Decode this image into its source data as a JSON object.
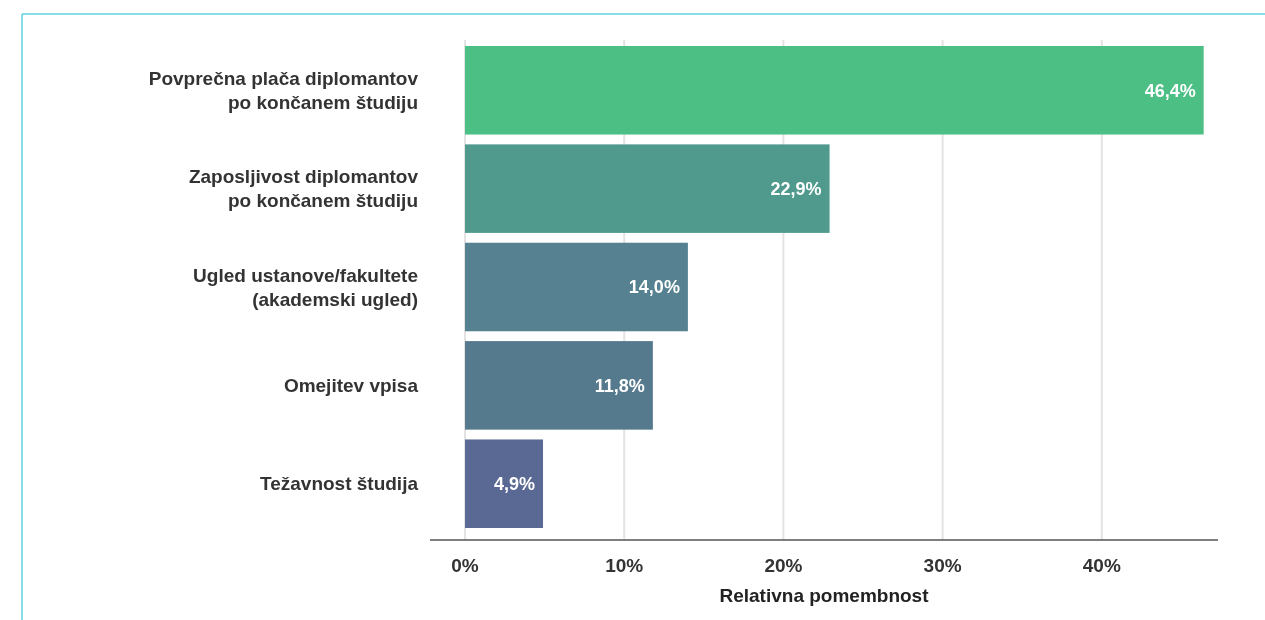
{
  "chart_data": {
    "type": "bar",
    "orientation": "horizontal",
    "xlabel": "Relativna pomembnost",
    "categories": [
      "Povprečna plača diplomantov\npo končanem študiju",
      "Zaposljivost diplomantov\npo končanem študiju",
      "Ugled ustanove/fakultete\n(akademski ugled)",
      "Omejitev vpisa",
      "Težavnost študija"
    ],
    "values": [
      46.4,
      22.9,
      14.0,
      11.8,
      4.9
    ],
    "colors": [
      "#4cbf85",
      "#4f9a8c",
      "#558190",
      "#567a8d",
      "#5a6994"
    ],
    "value_labels": [
      "46,4%",
      "22,9%",
      "14,0%",
      "11,8%",
      "4,9%"
    ],
    "xlim": [
      -2.2,
      47.3
    ],
    "xticks": [
      {
        "value": 0,
        "label": "0%"
      },
      {
        "value": 10,
        "label": "10%"
      },
      {
        "value": 20,
        "label": "20%"
      },
      {
        "value": 30,
        "label": "30%"
      },
      {
        "value": 40,
        "label": "40%"
      }
    ],
    "grid": "x"
  }
}
